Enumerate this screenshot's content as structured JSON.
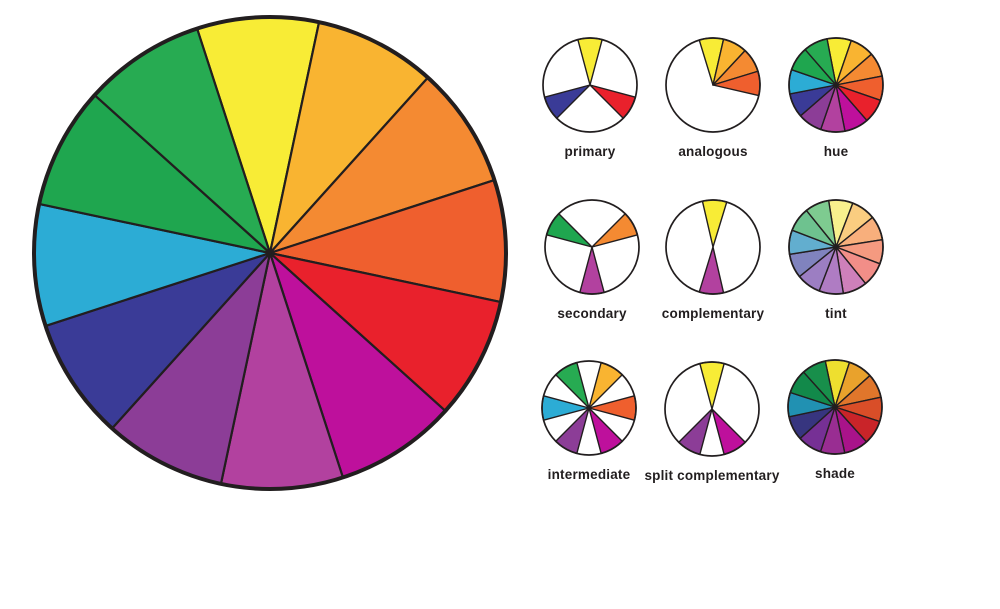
{
  "diagram": {
    "title": "color wheel diagram",
    "background": "#ffffff",
    "outline_color": "#221e1f",
    "slice_names": [
      "yellow",
      "yellow-orange",
      "orange",
      "red-orange",
      "red",
      "red-violet",
      "violet",
      "blue-violet-purple",
      "blue",
      "blue-green",
      "green",
      "yellow-green"
    ],
    "palette": {
      "base": [
        "#F8EC36",
        "#F9B431",
        "#F48A32",
        "#EF5F2E",
        "#E9212C",
        "#BE109C",
        "#B2419F",
        "#8C3D97",
        "#3A3B97",
        "#2CACD5",
        "#1FA64F",
        "#27AB52"
      ],
      "tint": [
        "#F8F08D",
        "#FACD80",
        "#F8AF7C",
        "#F59A80",
        "#F28E88",
        "#CE80BA",
        "#AF7CC3",
        "#9C7EC2",
        "#8083BE",
        "#62AECF",
        "#6EC28F",
        "#7ECB90"
      ],
      "shade": [
        "#EEDF2F",
        "#E9A22C",
        "#E0762B",
        "#D94E28",
        "#C92429",
        "#A9138A",
        "#992D92",
        "#763095",
        "#37357F",
        "#2191B2",
        "#12894A",
        "#188F4B"
      ]
    },
    "main_wheel": {
      "name": "color wheel",
      "mode": "base",
      "filled": "all",
      "rotation": -3
    },
    "mini_wheels": [
      {
        "label": "primary",
        "mode": "base",
        "filled": [
          0,
          4,
          8
        ],
        "rotation": 0
      },
      {
        "label": "analogous",
        "mode": "base",
        "filled": [
          0,
          1,
          2,
          3
        ],
        "rotation": -2
      },
      {
        "label": "hue",
        "mode": "base",
        "filled": "all",
        "rotation": 4
      },
      {
        "label": "secondary",
        "mode": "base",
        "filled": [
          2,
          6,
          10
        ],
        "rotation": 0
      },
      {
        "label": "complementary",
        "mode": "base",
        "filled": [
          0,
          6
        ],
        "rotation": 2
      },
      {
        "label": "tint",
        "mode": "tint",
        "filled": "all",
        "rotation": 6
      },
      {
        "label": "intermediate",
        "mode": "base",
        "filled": [
          1,
          3,
          5,
          7,
          9,
          11
        ],
        "rotation": 0
      },
      {
        "label": "split complementary",
        "mode": "base",
        "filled": [
          0,
          5,
          7
        ],
        "rotation": 0
      },
      {
        "label": "shade",
        "mode": "shade",
        "filled": "all",
        "rotation": 3
      }
    ]
  }
}
